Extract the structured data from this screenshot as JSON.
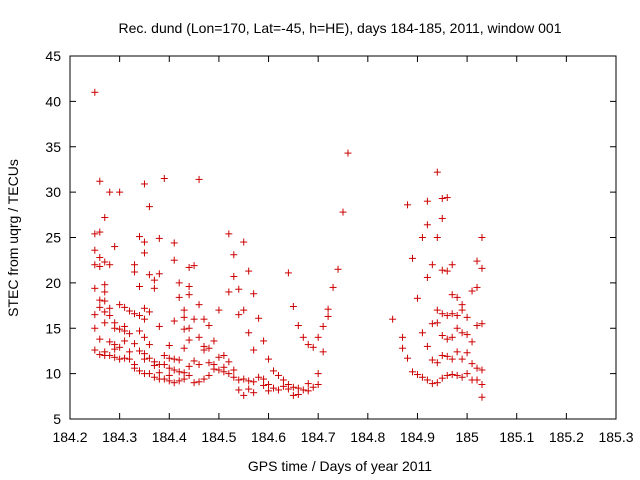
{
  "chart_data": {
    "type": "scatter",
    "title": "Rec. dund (Lon=170, Lat=-45, h=HE), days 184-185, 2011, window 001",
    "xlabel": "GPS time / Days of year 2011",
    "ylabel": "STEC from uqrg / TECUs",
    "xlim": [
      184.2,
      185.3
    ],
    "ylim": [
      5,
      45
    ],
    "xticks": [
      184.2,
      184.3,
      184.4,
      184.5,
      184.6,
      184.7,
      184.8,
      184.9,
      185.0,
      185.1,
      185.2,
      185.3
    ],
    "xtick_labels": [
      "184.2",
      "184.3",
      "184.4",
      "184.5",
      "184.6",
      "184.7",
      "184.8",
      "184.9",
      "185",
      "185.1",
      "185.2",
      "185.3"
    ],
    "yticks": [
      5,
      10,
      15,
      20,
      25,
      30,
      35,
      40,
      45
    ],
    "ytick_labels": [
      "5",
      "10",
      "15",
      "20",
      "25",
      "30",
      "35",
      "40",
      "45"
    ],
    "grid": false,
    "marker": "plus",
    "marker_color": "#cc0000",
    "series": [
      {
        "name": "STEC",
        "points": [
          [
            184.25,
            41.0
          ],
          [
            184.25,
            25.4
          ],
          [
            184.25,
            23.6
          ],
          [
            184.25,
            22.0
          ],
          [
            184.25,
            19.4
          ],
          [
            184.25,
            16.5
          ],
          [
            184.25,
            15.0
          ],
          [
            184.25,
            12.6
          ],
          [
            184.26,
            31.2
          ],
          [
            184.26,
            25.6
          ],
          [
            184.26,
            22.8
          ],
          [
            184.26,
            21.8
          ],
          [
            184.26,
            18.1
          ],
          [
            184.26,
            17.3
          ],
          [
            184.26,
            13.8
          ],
          [
            184.26,
            12.1
          ],
          [
            184.27,
            27.2
          ],
          [
            184.27,
            22.3
          ],
          [
            184.27,
            19.8
          ],
          [
            184.27,
            19.0
          ],
          [
            184.27,
            18.0
          ],
          [
            184.27,
            16.8
          ],
          [
            184.27,
            15.6
          ],
          [
            184.27,
            12.4
          ],
          [
            184.27,
            12.0
          ],
          [
            184.28,
            30.0
          ],
          [
            184.28,
            22.0
          ],
          [
            184.28,
            17.2
          ],
          [
            184.28,
            16.4
          ],
          [
            184.28,
            13.5
          ],
          [
            184.28,
            12.0
          ],
          [
            184.29,
            24.0
          ],
          [
            184.29,
            15.6
          ],
          [
            184.29,
            15.0
          ],
          [
            184.29,
            13.2
          ],
          [
            184.29,
            12.7
          ],
          [
            184.29,
            11.8
          ],
          [
            184.3,
            30.0
          ],
          [
            184.3,
            17.6
          ],
          [
            184.3,
            14.9
          ],
          [
            184.3,
            12.9
          ],
          [
            184.3,
            11.6
          ],
          [
            184.31,
            17.3
          ],
          [
            184.31,
            15.2
          ],
          [
            184.31,
            14.7
          ],
          [
            184.31,
            13.6
          ],
          [
            184.31,
            11.7
          ],
          [
            184.32,
            16.9
          ],
          [
            184.32,
            14.4
          ],
          [
            184.32,
            12.4
          ],
          [
            184.32,
            11.6
          ],
          [
            184.33,
            22.0
          ],
          [
            184.33,
            21.2
          ],
          [
            184.33,
            16.6
          ],
          [
            184.33,
            13.3
          ],
          [
            184.33,
            11.0
          ],
          [
            184.33,
            10.6
          ],
          [
            184.34,
            25.1
          ],
          [
            184.34,
            19.6
          ],
          [
            184.34,
            16.4
          ],
          [
            184.34,
            14.7
          ],
          [
            184.34,
            12.5
          ],
          [
            184.34,
            10.3
          ],
          [
            184.35,
            30.9
          ],
          [
            184.35,
            24.5
          ],
          [
            184.35,
            23.3
          ],
          [
            184.35,
            17.2
          ],
          [
            184.35,
            16.0
          ],
          [
            184.35,
            14.0
          ],
          [
            184.35,
            12.2
          ],
          [
            184.35,
            11.6
          ],
          [
            184.35,
            10.0
          ],
          [
            184.36,
            28.4
          ],
          [
            184.36,
            20.9
          ],
          [
            184.36,
            16.8
          ],
          [
            184.36,
            13.2
          ],
          [
            184.36,
            11.7
          ],
          [
            184.36,
            10.0
          ],
          [
            184.37,
            20.3
          ],
          [
            184.37,
            19.4
          ],
          [
            184.37,
            11.3
          ],
          [
            184.37,
            10.9
          ],
          [
            184.37,
            9.6
          ],
          [
            184.38,
            24.9
          ],
          [
            184.38,
            21.0
          ],
          [
            184.38,
            15.2
          ],
          [
            184.38,
            11.0
          ],
          [
            184.38,
            10.1
          ],
          [
            184.38,
            9.4
          ],
          [
            184.39,
            31.5
          ],
          [
            184.39,
            12.0
          ],
          [
            184.39,
            11.0
          ],
          [
            184.39,
            9.4
          ],
          [
            184.4,
            13.1
          ],
          [
            184.4,
            11.7
          ],
          [
            184.4,
            10.6
          ],
          [
            184.4,
            9.8
          ],
          [
            184.4,
            9.2
          ],
          [
            184.41,
            24.4
          ],
          [
            184.41,
            22.5
          ],
          [
            184.41,
            15.8
          ],
          [
            184.41,
            11.6
          ],
          [
            184.41,
            10.4
          ],
          [
            184.41,
            9.0
          ],
          [
            184.42,
            20.0
          ],
          [
            184.42,
            18.4
          ],
          [
            184.42,
            11.5
          ],
          [
            184.42,
            10.2
          ],
          [
            184.42,
            9.2
          ],
          [
            184.43,
            17.0
          ],
          [
            184.43,
            16.2
          ],
          [
            184.43,
            14.9
          ],
          [
            184.43,
            12.8
          ],
          [
            184.43,
            10.1
          ],
          [
            184.43,
            9.4
          ],
          [
            184.44,
            21.7
          ],
          [
            184.44,
            19.6
          ],
          [
            184.44,
            18.7
          ],
          [
            184.44,
            15.0
          ],
          [
            184.44,
            13.7
          ],
          [
            184.44,
            10.8
          ],
          [
            184.44,
            9.8
          ],
          [
            184.45,
            21.9
          ],
          [
            184.45,
            16.0
          ],
          [
            184.45,
            11.4
          ],
          [
            184.45,
            9.0
          ],
          [
            184.46,
            31.4
          ],
          [
            184.46,
            17.6
          ],
          [
            184.46,
            14.0
          ],
          [
            184.46,
            11.0
          ],
          [
            184.46,
            9.1
          ],
          [
            184.47,
            16.0
          ],
          [
            184.47,
            13.0
          ],
          [
            184.47,
            12.6
          ],
          [
            184.47,
            9.4
          ],
          [
            184.48,
            15.3
          ],
          [
            184.48,
            12.8
          ],
          [
            184.48,
            11.2
          ],
          [
            184.48,
            9.8
          ],
          [
            184.49,
            13.6
          ],
          [
            184.49,
            11.0
          ],
          [
            184.49,
            10.5
          ],
          [
            184.5,
            17.0
          ],
          [
            184.5,
            11.8
          ],
          [
            184.5,
            10.4
          ],
          [
            184.51,
            12.0
          ],
          [
            184.51,
            10.7
          ],
          [
            184.51,
            10.2
          ],
          [
            184.52,
            25.4
          ],
          [
            184.52,
            19.0
          ],
          [
            184.52,
            11.3
          ],
          [
            184.52,
            10.0
          ],
          [
            184.53,
            23.1
          ],
          [
            184.53,
            20.7
          ],
          [
            184.53,
            10.4
          ],
          [
            184.53,
            9.6
          ],
          [
            184.54,
            19.3
          ],
          [
            184.54,
            16.5
          ],
          [
            184.54,
            9.3
          ],
          [
            184.54,
            8.2
          ],
          [
            184.55,
            24.5
          ],
          [
            184.55,
            17.0
          ],
          [
            184.55,
            9.4
          ],
          [
            184.55,
            7.6
          ],
          [
            184.56,
            21.3
          ],
          [
            184.56,
            14.5
          ],
          [
            184.56,
            9.2
          ],
          [
            184.56,
            8.3
          ],
          [
            184.57,
            18.8
          ],
          [
            184.57,
            12.6
          ],
          [
            184.57,
            9.1
          ],
          [
            184.57,
            7.9
          ],
          [
            184.58,
            16.1
          ],
          [
            184.58,
            9.6
          ],
          [
            184.59,
            13.6
          ],
          [
            184.59,
            9.4
          ],
          [
            184.59,
            8.7
          ],
          [
            184.6,
            11.6
          ],
          [
            184.6,
            8.8
          ],
          [
            184.6,
            8.1
          ],
          [
            184.61,
            10.3
          ],
          [
            184.61,
            8.4
          ],
          [
            184.62,
            9.8
          ],
          [
            184.62,
            8.2
          ],
          [
            184.63,
            9.3
          ],
          [
            184.63,
            8.6
          ],
          [
            184.64,
            21.1
          ],
          [
            184.64,
            8.8
          ],
          [
            184.64,
            8.3
          ],
          [
            184.65,
            17.4
          ],
          [
            184.65,
            8.5
          ],
          [
            184.65,
            7.6
          ],
          [
            184.66,
            15.3
          ],
          [
            184.66,
            8.4
          ],
          [
            184.66,
            7.7
          ],
          [
            184.67,
            14.0
          ],
          [
            184.67,
            8.2
          ],
          [
            184.68,
            13.2
          ],
          [
            184.68,
            8.9
          ],
          [
            184.68,
            8.1
          ],
          [
            184.69,
            12.9
          ],
          [
            184.69,
            8.5
          ],
          [
            184.7,
            14.0
          ],
          [
            184.7,
            10.0
          ],
          [
            184.7,
            8.8
          ],
          [
            184.71,
            15.2
          ],
          [
            184.71,
            12.4
          ],
          [
            184.72,
            17.1
          ],
          [
            184.72,
            16.3
          ],
          [
            184.73,
            19.5
          ],
          [
            184.74,
            21.5
          ],
          [
            184.75,
            27.8
          ],
          [
            184.76,
            34.3
          ],
          [
            184.85,
            16.0
          ],
          [
            184.87,
            14.0
          ],
          [
            184.87,
            12.8
          ],
          [
            184.88,
            28.6
          ],
          [
            184.88,
            11.7
          ],
          [
            184.89,
            22.7
          ],
          [
            184.89,
            10.2
          ],
          [
            184.9,
            18.3
          ],
          [
            184.9,
            9.9
          ],
          [
            184.91,
            25.0
          ],
          [
            184.91,
            14.5
          ],
          [
            184.91,
            9.6
          ],
          [
            184.92,
            29.0
          ],
          [
            184.92,
            26.4
          ],
          [
            184.92,
            20.6
          ],
          [
            184.92,
            13.0
          ],
          [
            184.92,
            9.3
          ],
          [
            184.93,
            22.0
          ],
          [
            184.93,
            15.5
          ],
          [
            184.93,
            11.5
          ],
          [
            184.93,
            8.9
          ],
          [
            184.94,
            32.2
          ],
          [
            184.94,
            25.0
          ],
          [
            184.94,
            17.0
          ],
          [
            184.94,
            15.6
          ],
          [
            184.94,
            11.2
          ],
          [
            184.94,
            9.0
          ],
          [
            184.95,
            29.3
          ],
          [
            184.95,
            27.1
          ],
          [
            184.95,
            21.4
          ],
          [
            184.95,
            16.6
          ],
          [
            184.95,
            14.2
          ],
          [
            184.95,
            12.0
          ],
          [
            184.95,
            9.5
          ],
          [
            184.96,
            29.4
          ],
          [
            184.96,
            21.3
          ],
          [
            184.96,
            16.4
          ],
          [
            184.96,
            13.8
          ],
          [
            184.96,
            11.9
          ],
          [
            184.96,
            9.8
          ],
          [
            184.97,
            22.0
          ],
          [
            184.97,
            18.7
          ],
          [
            184.97,
            16.6
          ],
          [
            184.97,
            14.0
          ],
          [
            184.97,
            11.6
          ],
          [
            184.97,
            9.9
          ],
          [
            184.98,
            18.4
          ],
          [
            184.98,
            16.4
          ],
          [
            184.98,
            15.0
          ],
          [
            184.98,
            12.4
          ],
          [
            184.98,
            9.8
          ],
          [
            184.99,
            17.6
          ],
          [
            184.99,
            17.0
          ],
          [
            184.99,
            14.5
          ],
          [
            184.99,
            11.6
          ],
          [
            184.99,
            9.6
          ],
          [
            185.0,
            16.2
          ],
          [
            185.0,
            14.3
          ],
          [
            185.0,
            12.3
          ],
          [
            185.0,
            10.0
          ],
          [
            185.01,
            19.1
          ],
          [
            185.01,
            13.5
          ],
          [
            185.01,
            11.1
          ],
          [
            185.01,
            9.3
          ],
          [
            185.02,
            22.4
          ],
          [
            185.02,
            19.5
          ],
          [
            185.02,
            15.3
          ],
          [
            185.02,
            10.6
          ],
          [
            185.02,
            9.3
          ],
          [
            185.03,
            25.0
          ],
          [
            185.03,
            21.6
          ],
          [
            185.03,
            15.5
          ],
          [
            185.03,
            10.4
          ],
          [
            185.03,
            8.8
          ],
          [
            185.03,
            7.4
          ]
        ]
      }
    ]
  }
}
